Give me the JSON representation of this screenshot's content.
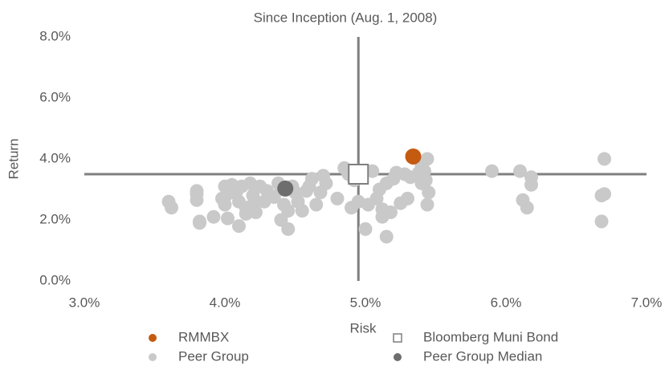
{
  "chart_data": {
    "type": "scatter",
    "title": "Since Inception (Aug. 1, 2008)",
    "x_label": "Risk",
    "y_label": "Return",
    "xlim": [
      3,
      7
    ],
    "ylim": [
      0,
      8
    ],
    "xticks": [
      {
        "value": 3,
        "label": "3.0%"
      },
      {
        "value": 4,
        "label": "4.0%"
      },
      {
        "value": 5,
        "label": "5.0%"
      },
      {
        "value": 6,
        "label": "6.0%"
      },
      {
        "value": 7,
        "label": "7.0%"
      }
    ],
    "yticks": [
      {
        "value": 0,
        "label": "0.0%"
      },
      {
        "value": 2,
        "label": "2.0%"
      },
      {
        "value": 4,
        "label": "4.0%"
      },
      {
        "value": 6,
        "label": "6.0%"
      },
      {
        "value": 8,
        "label": "8.0%"
      }
    ],
    "series": [
      {
        "name": "RMMBX",
        "color": "#c55a11",
        "marker": "circle",
        "x": [
          5.34
        ],
        "y": [
          4.08
        ]
      },
      {
        "name": "Bloomberg Muni Bond",
        "color": "#7f7f7f",
        "marker": "square",
        "x": [
          4.95
        ],
        "y": [
          3.5
        ]
      },
      {
        "name": "Peer Group",
        "color": "#c9c9c9",
        "marker": "circle",
        "x": [
          3.6,
          3.62,
          3.8,
          3.8,
          3.8,
          3.82,
          3.82,
          3.92,
          4.0,
          4.0,
          4.0,
          4.02,
          4.05,
          4.08,
          4.1,
          4.1,
          4.12,
          4.15,
          4.15,
          4.18,
          4.2,
          4.22,
          4.25,
          4.28,
          4.3,
          4.35,
          4.38,
          4.4,
          4.4,
          4.42,
          4.45,
          4.45,
          4.48,
          4.5,
          4.52,
          4.55,
          4.58,
          4.6,
          4.62,
          4.65,
          4.68,
          4.7,
          4.72,
          4.8,
          4.85,
          4.88,
          4.9,
          4.92,
          4.95,
          5.0,
          5.02,
          5.05,
          5.08,
          5.1,
          5.12,
          5.12,
          5.15,
          5.15,
          5.18,
          5.2,
          5.22,
          5.25,
          5.28,
          5.3,
          5.32,
          5.38,
          5.4,
          5.42,
          5.43,
          5.44,
          5.44,
          5.45,
          5.9,
          6.1,
          6.12,
          6.15,
          6.18,
          6.18,
          6.68,
          6.7,
          6.68,
          6.7,
          5.4,
          4.2,
          4.05,
          3.98
        ],
        "y": [
          2.6,
          2.4,
          2.95,
          2.85,
          2.65,
          1.95,
          1.9,
          2.1,
          3.1,
          2.75,
          2.5,
          2.05,
          3.15,
          2.9,
          2.6,
          1.8,
          3.1,
          2.4,
          2.2,
          3.2,
          2.8,
          2.25,
          3.1,
          2.6,
          2.95,
          2.75,
          3.2,
          3.0,
          2.0,
          2.5,
          1.7,
          2.3,
          3.1,
          2.9,
          2.6,
          2.3,
          2.95,
          3.1,
          3.35,
          2.5,
          2.9,
          3.45,
          3.2,
          2.7,
          3.7,
          3.5,
          2.4,
          3.3,
          2.6,
          1.7,
          2.5,
          3.6,
          2.7,
          3.0,
          2.1,
          2.35,
          1.45,
          3.2,
          2.25,
          3.35,
          3.55,
          2.55,
          3.5,
          2.7,
          3.4,
          3.55,
          3.8,
          3.6,
          3.3,
          2.5,
          4.0,
          2.9,
          3.6,
          3.6,
          2.65,
          2.4,
          3.4,
          3.15,
          2.8,
          2.85,
          1.95,
          4.0,
          3.2,
          2.5,
          2.9,
          2.7
        ]
      },
      {
        "name": "Peer Group Median",
        "color": "#6e6e6e",
        "marker": "circle",
        "x": [
          4.43
        ],
        "y": [
          3.03
        ]
      }
    ]
  }
}
